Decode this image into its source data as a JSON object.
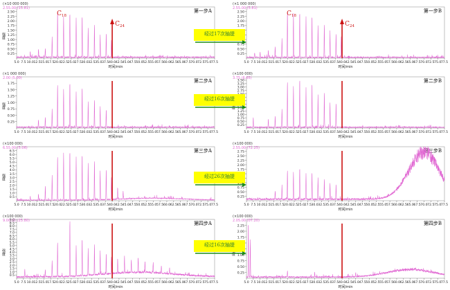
{
  "chart_data": [
    {
      "type": "line",
      "id": "p1",
      "title": "第一步A",
      "multiplier": "(×10 000 000)",
      "peak_info": "2.55.00 (15.81)",
      "ylabel": "强度",
      "xlabel": "时间/min",
      "ylim": [
        0,
        2.75
      ],
      "xlim": [
        5,
        77.5
      ],
      "yticks": [
        "0.25",
        "0.50",
        "0.75",
        "1.00",
        "1.25",
        "1.50",
        "1.75",
        "2.00",
        "2.25",
        "2.50"
      ],
      "annotations": [
        "C18",
        "C24"
      ],
      "c24_x": 40
    },
    {
      "type": "line",
      "id": "p2",
      "title": "第一步B",
      "multiplier": "(×1 000 000)",
      "peak_info": "2.55.00 (5.81)",
      "ylabel": "强度",
      "xlabel": "时间/min",
      "ylim": [
        0,
        2.75
      ],
      "xlim": [
        5,
        77.5
      ],
      "yticks": [
        "0.25",
        "0.50",
        "0.75",
        "1.00",
        "1.25",
        "1.50",
        "1.75",
        "2.00",
        "2.25",
        "2.50"
      ],
      "annotations": [
        "C18",
        "C24"
      ],
      "c24_x": 40
    },
    {
      "type": "line",
      "id": "p3",
      "title": "第二步A",
      "multiplier": "(×1 000 000)",
      "peak_info": "2.00 (5.00)",
      "ylabel": "强度",
      "xlabel": "时间/min",
      "ylim": [
        0,
        2.0
      ],
      "xlim": [
        5,
        77.5
      ],
      "yticks": [
        "0.25",
        "0.50",
        "0.75",
        "1.00",
        "1.25",
        "1.50",
        "1.75"
      ],
      "c24_x": 40
    },
    {
      "type": "line",
      "id": "p4",
      "title": "第二步B",
      "multiplier": "(×100 000)",
      "peak_info": "3.75 (6.65)",
      "ylabel": "强度",
      "xlabel": "时间/min",
      "ylim": [
        0,
        3.75
      ],
      "xlim": [
        5,
        77.5
      ],
      "yticks": [
        "0.25",
        "0.50",
        "0.75",
        "1.00",
        "1.25",
        "1.50",
        "1.75",
        "2.00",
        "2.25",
        "2.50",
        "2.75",
        "3.00",
        "3.25",
        "3.50"
      ],
      "c24_x": 40
    },
    {
      "type": "line",
      "id": "p5",
      "title": "第三步A",
      "multiplier": "(×100 000)",
      "peak_info": "6.55.00 (5.06)",
      "ylabel": "强度",
      "xlabel": "时间/min",
      "ylim": [
        0,
        7.0
      ],
      "xlim": [
        5,
        77.5
      ],
      "yticks": [
        "0.5",
        "1.0",
        "1.5",
        "2.0",
        "2.5",
        "3.0",
        "3.5",
        "4.0",
        "4.5",
        "5.0",
        "5.5",
        "6.0",
        "6.5"
      ],
      "c24_x": 40
    },
    {
      "type": "line",
      "id": "p6",
      "title": "第三步B",
      "multiplier": "(×100 000)",
      "peak_info": "2.55.00 (72.25)",
      "ylabel": "强度",
      "xlabel": "时间/min",
      "ylim": [
        0,
        3.0
      ],
      "xlim": [
        5,
        77.5
      ],
      "yticks": [
        "0.25",
        "0.50",
        "0.75",
        "1.00",
        "1.25",
        "1.50",
        "1.75",
        "2.00",
        "2.25",
        "2.50",
        "2.75"
      ],
      "c24_x": 40
    },
    {
      "type": "line",
      "id": "p7",
      "title": "第四步A",
      "multiplier": "(×100 000)",
      "peak_info": "9.00.00 (25.80)",
      "ylabel": "强度",
      "xlabel": "时间/min",
      "ylim": [
        0,
        9.0
      ],
      "xlim": [
        5,
        77.5
      ],
      "yticks": [
        "0.5",
        "1.0",
        "1.5",
        "2.0",
        "2.5",
        "3.0",
        "3.5",
        "4.0",
        "4.5",
        "5.0",
        "5.5",
        "6.0",
        "6.5",
        "7.0",
        "7.5",
        "8.0",
        "8.5",
        "9.0"
      ],
      "c24_x": 40
    },
    {
      "type": "line",
      "id": "p8",
      "title": "第四步B",
      "multiplier": "(×100 000)",
      "peak_info": "2.05.00 (07.20)",
      "ylabel": "强度",
      "xlabel": "时间/min",
      "ylim": [
        0,
        2.5
      ],
      "xlim": [
        5,
        77.5
      ],
      "yticks": [
        "0.25",
        "0.50",
        "0.75",
        "1.00",
        "1.25",
        "1.50",
        "1.75",
        "2.00",
        "2.25"
      ],
      "c24_x": 40
    }
  ],
  "x_ticks": [
    "5.0",
    "7.5",
    "10.0",
    "12.5",
    "15.0",
    "17.5",
    "20.0",
    "22.5",
    "25.0",
    "27.5",
    "30.0",
    "32.5",
    "35.0",
    "37.5",
    "40.0",
    "42.5",
    "45.0",
    "47.5",
    "50.0",
    "52.5",
    "55.0",
    "57.5",
    "60.0",
    "62.5",
    "65.0",
    "67.5",
    "70.0",
    "72.5",
    "75.0",
    "77.5"
  ],
  "arrows": [
    {
      "label": "经过17次抽提"
    },
    {
      "label": "经过16次抽提"
    },
    {
      "label": "经过26次抽提"
    },
    {
      "label": "经过16次抽提"
    }
  ],
  "colors": {
    "trace": "#e066d2",
    "marker": "#cc1111",
    "arrow": "#1a8a1a",
    "box": "#ffff00"
  }
}
